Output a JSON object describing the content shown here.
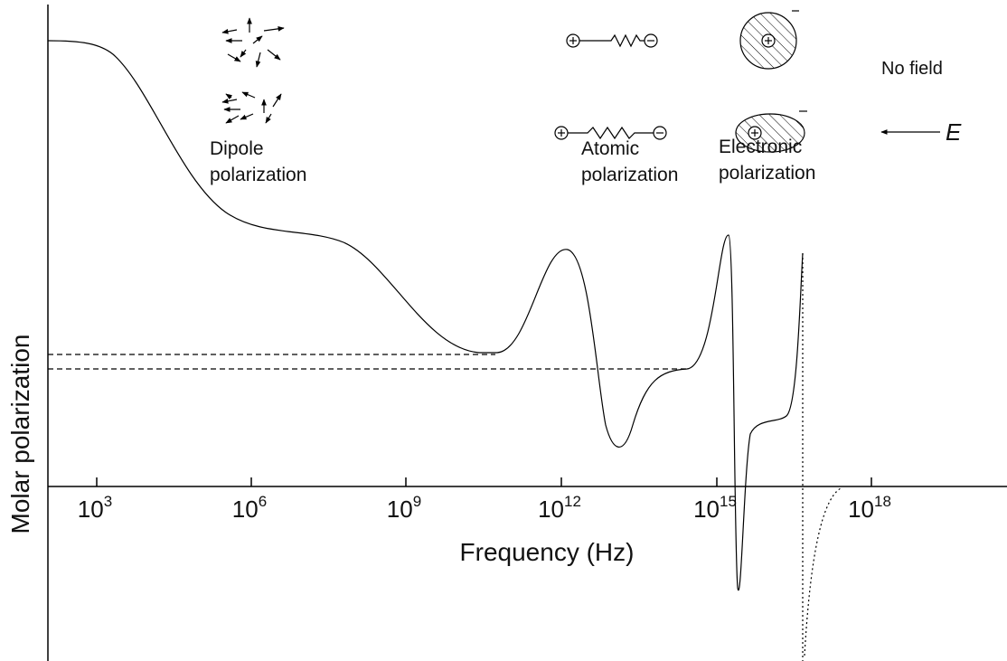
{
  "y_axis_label": "Molar polarization",
  "x_axis_label": "Frequency (Hz)",
  "x_ticks": [
    {
      "base": "10",
      "exponent": "3"
    },
    {
      "base": "10",
      "exponent": "6"
    },
    {
      "base": "10",
      "exponent": "9"
    },
    {
      "base": "10",
      "exponent": "12"
    },
    {
      "base": "10",
      "exponent": "15"
    },
    {
      "base": "10",
      "exponent": "18"
    }
  ],
  "annotations": {
    "no_field": "No field",
    "field": "E",
    "dipole": [
      "Dipole",
      "polarization"
    ],
    "atomic": [
      "Atomic",
      "polarization"
    ],
    "electronic": [
      "Electronic",
      "polarization"
    ]
  }
}
